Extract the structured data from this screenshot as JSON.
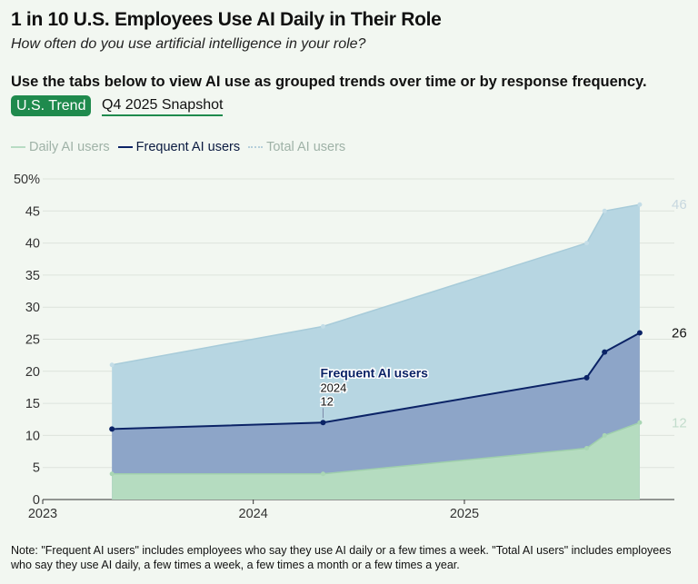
{
  "header": {
    "title": "1 in 10 U.S. Employees Use AI Daily in Their Role",
    "subtitle": "How often do you use artificial intelligence in your role?",
    "instruction": "Use the tabs below to view AI use as grouped trends over time or by response frequency."
  },
  "tabs": [
    {
      "label": "U.S. Trend",
      "active": true
    },
    {
      "label": "Q4 2025 Snapshot",
      "active": false
    }
  ],
  "legend": [
    {
      "label": "Daily AI users"
    },
    {
      "label": "Frequent AI users"
    },
    {
      "label": "Total AI users"
    }
  ],
  "chart_data": {
    "type": "area",
    "x_ticks": [
      "2023",
      "2024",
      "2025"
    ],
    "y_ticks": [
      "50%",
      "45",
      "40",
      "35",
      "30",
      "25",
      "20",
      "15",
      "10",
      "5",
      "0"
    ],
    "xlim": [
      "2023-01-01",
      "2025-12-31"
    ],
    "ylim": [
      0,
      50
    ],
    "grid": true,
    "legend_position": "top-left",
    "series": [
      {
        "name": "Total AI users",
        "color": "#b7d6e2",
        "points": [
          {
            "x": "2023-05",
            "y": 21
          },
          {
            "x": "2024-05",
            "y": 27
          },
          {
            "x": "2025-08",
            "y": 40
          },
          {
            "x": "2025-09",
            "y": 45
          },
          {
            "x": "2025-11",
            "y": 46
          }
        ],
        "end_label": "46"
      },
      {
        "name": "Frequent AI users",
        "color": "#0b2366",
        "points": [
          {
            "x": "2023-05",
            "y": 11
          },
          {
            "x": "2024-05",
            "y": 12
          },
          {
            "x": "2025-08",
            "y": 19
          },
          {
            "x": "2025-09",
            "y": 23
          },
          {
            "x": "2025-11",
            "y": 26
          }
        ],
        "end_label": "26"
      },
      {
        "name": "Daily AI users",
        "color": "#b5dcc0",
        "points": [
          {
            "x": "2023-05",
            "y": 4
          },
          {
            "x": "2024-05",
            "y": 4
          },
          {
            "x": "2025-08",
            "y": 8
          },
          {
            "x": "2025-09",
            "y": 10
          },
          {
            "x": "2025-11",
            "y": 12
          }
        ],
        "end_label": "12"
      }
    ],
    "tooltip": {
      "series": "Frequent AI users",
      "x_label": "2024",
      "value": "12"
    }
  },
  "note": "Note: \"Frequent AI users\" includes employees who say they use AI daily or a few times a week. \"Total AI users\" includes employees who say they use AI daily, a few times a week, a few times a month or a few times a year."
}
